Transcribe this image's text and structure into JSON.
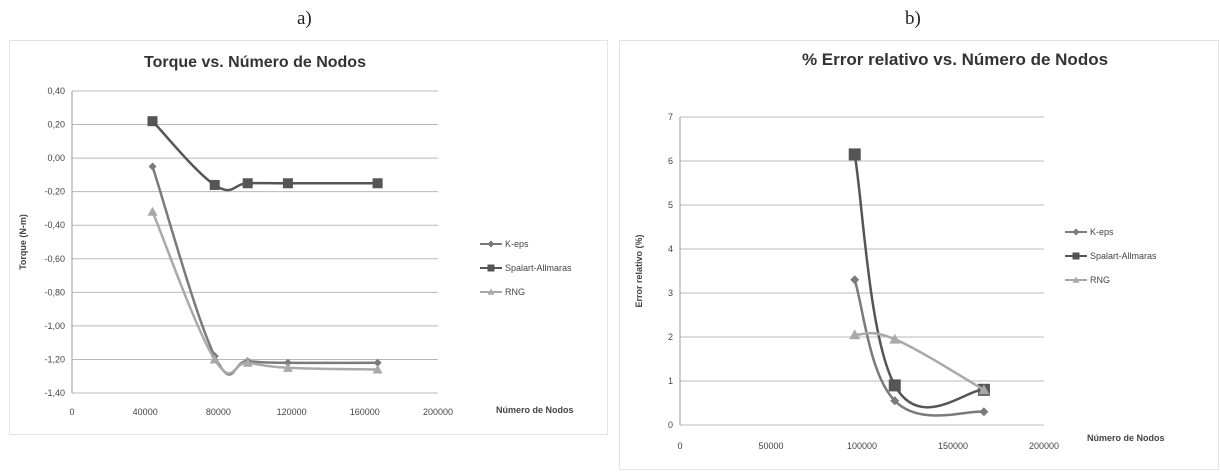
{
  "panels": {
    "a_label": "a)",
    "b_label": "b)"
  },
  "chart_data": [
    {
      "type": "line",
      "title": "Torque vs. Número de Nodos",
      "xlabel": "Número de Nodos",
      "ylabel": "Torque (N-m)",
      "xlim": [
        0,
        200000
      ],
      "ylim": [
        -1.4,
        0.4
      ],
      "xticks": [
        0,
        40000,
        80000,
        120000,
        160000,
        200000
      ],
      "xtick_labels": [
        "0",
        "40000",
        "80000",
        "120000",
        "160000",
        "200000"
      ],
      "yticks": [
        0.4,
        0.2,
        0.0,
        -0.2,
        -0.4,
        -0.6,
        -0.8,
        -1.0,
        -1.2,
        -1.4
      ],
      "ytick_labels": [
        "0,40",
        "0,20",
        "0,00",
        "-0,20",
        "-0,40",
        "-0,60",
        "-0,80",
        "-1,00",
        "-1,20",
        "-1,40"
      ],
      "grid": "horizontal",
      "legend_position": "right",
      "series": [
        {
          "name": "K-eps",
          "marker": "diamond",
          "color": "#7a7a7a",
          "x": [
            44000,
            78000,
            96000,
            118000,
            167000
          ],
          "y": [
            -0.05,
            -1.18,
            -1.21,
            -1.22,
            -1.22
          ]
        },
        {
          "name": "Spalart-Allmaras",
          "marker": "square",
          "color": "#555555",
          "x": [
            44000,
            78000,
            96000,
            118000,
            167000
          ],
          "y": [
            0.22,
            -0.16,
            -0.15,
            -0.15,
            -0.15
          ]
        },
        {
          "name": "RNG",
          "marker": "triangle",
          "color": "#a9a9a9",
          "x": [
            44000,
            78000,
            96000,
            118000,
            167000
          ],
          "y": [
            -0.32,
            -1.2,
            -1.22,
            -1.25,
            -1.26
          ]
        }
      ]
    },
    {
      "type": "line",
      "title": "% Error relativo vs. Número de Nodos",
      "xlabel": "Número de Nodos",
      "ylabel": "Error relativo (%)",
      "xlim": [
        0,
        200000
      ],
      "ylim": [
        0,
        7
      ],
      "xticks": [
        0,
        50000,
        100000,
        150000,
        200000
      ],
      "xtick_labels": [
        "0",
        "50000",
        "100000",
        "150000",
        "200000"
      ],
      "yticks": [
        7,
        6,
        5,
        4,
        3,
        2,
        1,
        0
      ],
      "ytick_labels": [
        "7",
        "6",
        "5",
        "4",
        "3",
        "2",
        "1",
        "0"
      ],
      "grid": "horizontal",
      "legend_position": "right",
      "series": [
        {
          "name": "K-eps",
          "marker": "diamond",
          "color": "#7a7a7a",
          "x": [
            96000,
            118000,
            167000
          ],
          "y": [
            3.3,
            0.55,
            0.3
          ]
        },
        {
          "name": "Spalart-Allmaras",
          "marker": "square",
          "color": "#555555",
          "x": [
            96000,
            118000,
            167000
          ],
          "y": [
            6.15,
            0.9,
            0.8
          ]
        },
        {
          "name": "RNG",
          "marker": "triangle",
          "color": "#a9a9a9",
          "x": [
            96000,
            118000,
            167000
          ],
          "y": [
            2.05,
            1.95,
            0.8
          ]
        }
      ]
    }
  ]
}
